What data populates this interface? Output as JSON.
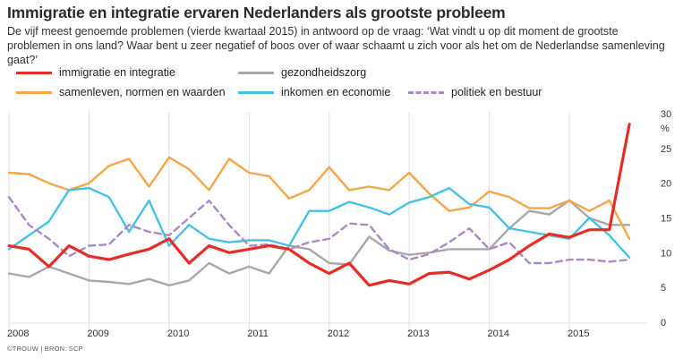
{
  "chart_data": {
    "type": "line",
    "title": "Immigratie en integratie ervaren Nederlanders als grootste probleem",
    "subtitle": "De vijf meest genoemde problemen (vierde kwartaal 2015) in antwoord op de vraag: ‘Wat vindt u op dit moment de grootste problemen in ons land? Waar bent u zeer negatief of boos over of waar schaamt u zich voor als het om de Nederlandse samenleving gaat?’",
    "x_start": 2008.0,
    "x_step": 0.25,
    "xlim": [
      2008,
      2015.85
    ],
    "x_ticks": [
      2008,
      2009,
      2010,
      2011,
      2012,
      2013,
      2014,
      2015
    ],
    "x_tick_labels": [
      "2008",
      "2009",
      "2010",
      "2011",
      "2012",
      "2013",
      "2014",
      "2015"
    ],
    "ylim": [
      0,
      30
    ],
    "y_ticks": [
      0,
      5,
      10,
      15,
      20,
      25,
      30
    ],
    "y_tick_labels": [
      "0",
      "5",
      "10",
      "15",
      "20",
      "25",
      "30"
    ],
    "y_unit": "%",
    "grid": "vertical",
    "legend_position": "top",
    "series": [
      {
        "name": "immigratie en integratie",
        "color": "#e52d27",
        "style": "solid",
        "values": [
          11,
          10.5,
          8,
          11,
          9.5,
          9,
          9.8,
          10.5,
          12,
          8.5,
          11,
          10,
          10.5,
          11,
          10.5,
          8.5,
          7,
          8.5,
          5.3,
          6,
          5.5,
          7,
          7.2,
          6.2,
          7.5,
          9,
          11,
          12.7,
          12.2,
          13.3,
          13.3,
          28.5
        ]
      },
      {
        "name": "gezondheidszorg",
        "color": "#a8a8a8",
        "style": "solid",
        "values": [
          7,
          6.5,
          8,
          7,
          6,
          5.8,
          5.5,
          6.2,
          5.3,
          6,
          8.5,
          7,
          8,
          7,
          11,
          10.5,
          8.5,
          8.3,
          12.3,
          10.3,
          9.7,
          10,
          10.5,
          10.5,
          10.5,
          13.5,
          16,
          15.5,
          17.5,
          15,
          14,
          14
        ]
      },
      {
        "name": "samenleven, normen en waarden",
        "color": "#f5a646",
        "style": "solid",
        "values": [
          21.5,
          21.3,
          20,
          19,
          20,
          22.5,
          23.5,
          19.5,
          23.7,
          22,
          19,
          23.5,
          21.5,
          21,
          17.8,
          19,
          22.3,
          19,
          19.5,
          19,
          21.5,
          18.5,
          16,
          16.5,
          18.8,
          18,
          16.4,
          16.4,
          17.5,
          16,
          17.5,
          12
        ]
      },
      {
        "name": "inkomen en economie",
        "color": "#45c1e6",
        "style": "solid",
        "values": [
          10.5,
          12.5,
          14.5,
          19,
          19.3,
          18,
          13,
          17.5,
          11,
          14,
          12,
          11.5,
          11.8,
          11.8,
          11,
          16,
          16,
          17.3,
          16.5,
          15.5,
          17.2,
          18,
          19.3,
          17,
          16.5,
          13.5,
          13,
          12.5,
          12,
          15,
          12.5,
          9.3
        ]
      },
      {
        "name": "politiek en bestuur",
        "color": "#a98ac6",
        "style": "dashed",
        "values": [
          18,
          14,
          12,
          9.5,
          11,
          11.2,
          14,
          13,
          12.5,
          15,
          17.5,
          14,
          11,
          11.2,
          10.5,
          11.5,
          12,
          14.2,
          14,
          10.5,
          9,
          9.8,
          11.5,
          13.5,
          10.5,
          11.5,
          8.5,
          8.5,
          9,
          9,
          8.7,
          9
        ]
      }
    ],
    "legend": [
      {
        "label": "immigratie en integratie",
        "color": "#e52d27",
        "style": "solid"
      },
      {
        "label": "gezondheidszorg",
        "color": "#a8a8a8",
        "style": "solid"
      },
      {
        "label": "samenleven, normen en waarden",
        "color": "#f5a646",
        "style": "solid"
      },
      {
        "label": "inkomen en economie",
        "color": "#45c1e6",
        "style": "solid"
      },
      {
        "label": "politiek en bestuur",
        "color": "#a98ac6",
        "style": "dashed"
      }
    ],
    "source": "©TROUW | BRON: SCP"
  }
}
